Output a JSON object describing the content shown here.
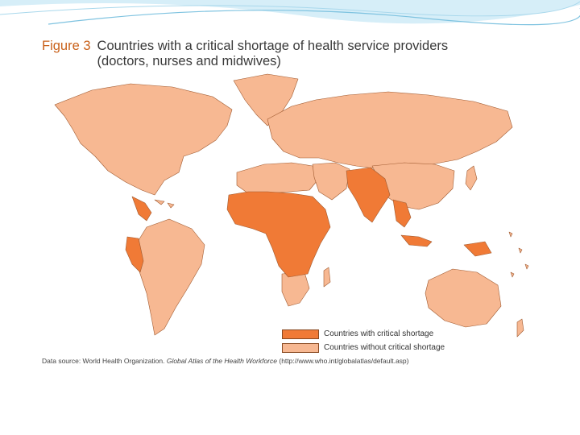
{
  "figure": {
    "label": "Figure 3",
    "title_line1": "Countries with a critical shortage of health service providers",
    "title_line2": "(doctors, nurses and midwives)"
  },
  "legend": {
    "items": [
      {
        "label": "Countries with critical shortage",
        "color": "#f07a36"
      },
      {
        "label": "Countries without critical shortage",
        "color": "#f7b892"
      }
    ]
  },
  "source": {
    "prefix": "Data source: World Health Organization.",
    "publication": "Global Atlas of the Health Workforce",
    "url": "(http://www.who.int/globalatlas/default.asp)"
  },
  "colors": {
    "critical": "#f07a36",
    "non_critical": "#f7b892",
    "border": "#a05a30",
    "accent": "#5aaed6"
  },
  "map": {
    "critical_regions": [
      "Sub-Saharan Africa",
      "South Asia",
      "Southeast Asia",
      "Andean South America",
      "Central America",
      "Papua New Guinea"
    ]
  }
}
